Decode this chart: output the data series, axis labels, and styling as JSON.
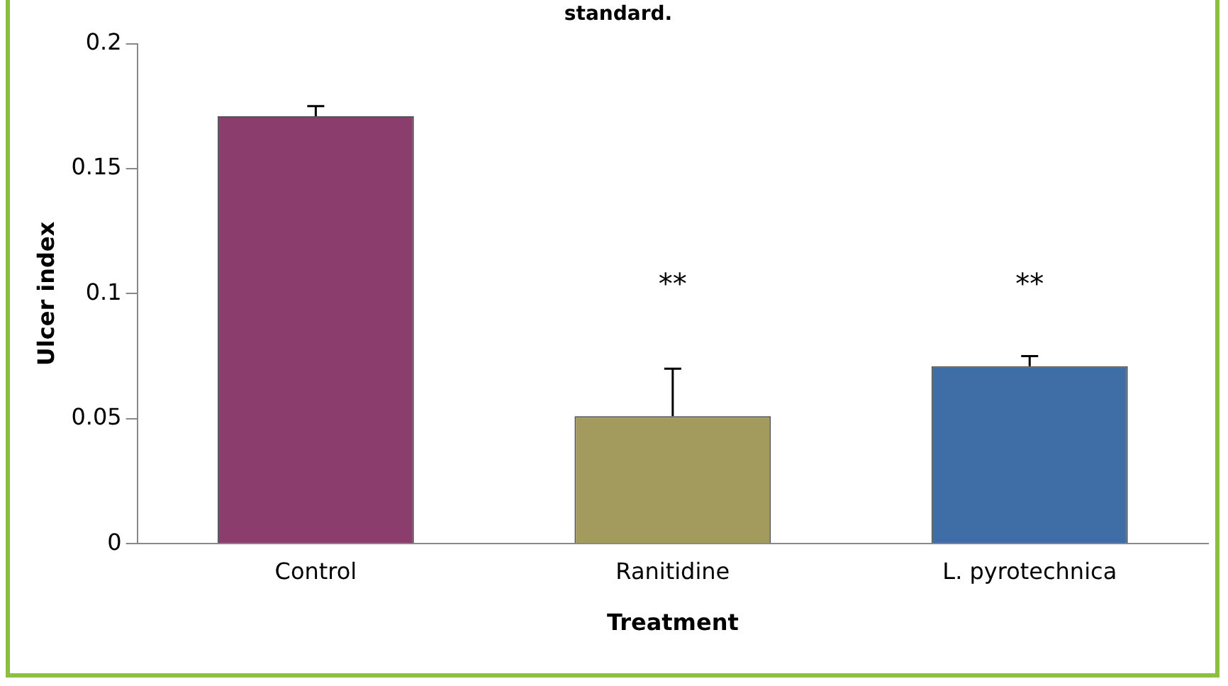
{
  "chart_data": {
    "type": "bar",
    "title": "standard.",
    "xlabel": "Treatment",
    "ylabel": "Ulcer index",
    "categories": [
      "Control",
      "Ranitidine",
      "L. pyrotechnica"
    ],
    "values": [
      0.171,
      0.051,
      0.071
    ],
    "colors": [
      "#8b3d6e",
      "#a39b5e",
      "#3f6ea6"
    ],
    "errors": [
      [
        0.171,
        0.175
      ],
      [
        0.051,
        0.07
      ],
      [
        0.071,
        0.075
      ]
    ],
    "ylim": [
      0,
      0.2
    ],
    "yticks": [
      0,
      0.05,
      0.1,
      0.15,
      0.2
    ],
    "grid": false,
    "legend": false,
    "annotations": [
      "**",
      "**"
    ]
  }
}
